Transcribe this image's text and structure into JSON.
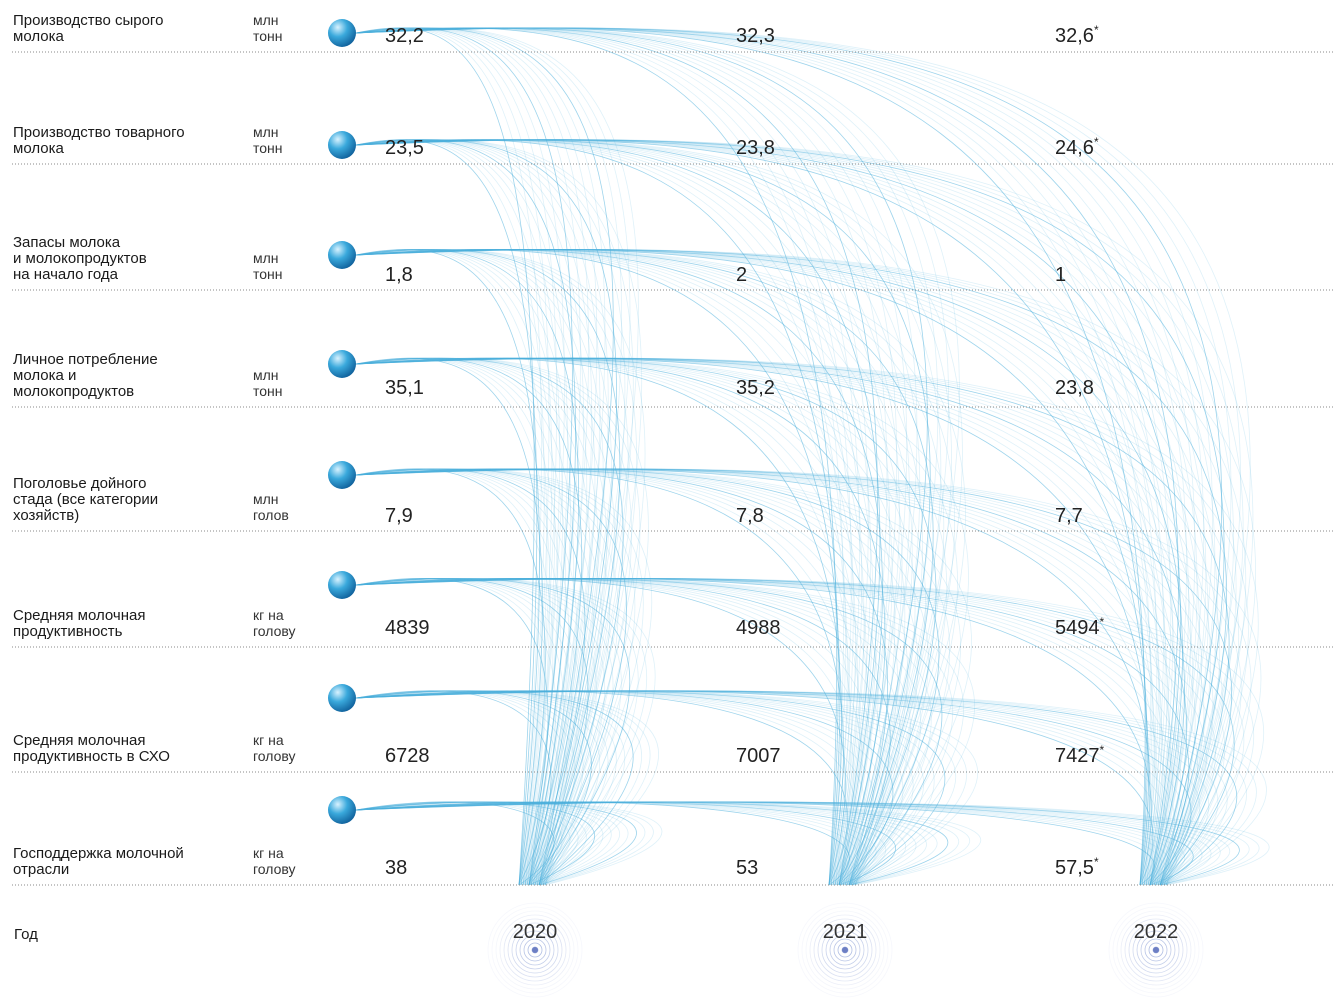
{
  "table": {
    "rows": [
      {
        "label": [
          "Производство сырого",
          "молока"
        ],
        "unit": [
          "млн",
          "тонн"
        ],
        "values": [
          "32,2",
          "32,3",
          "32,6"
        ],
        "notes": [
          null,
          null,
          "*"
        ]
      },
      {
        "label": [
          "Производство товарного",
          "молока"
        ],
        "unit": [
          "млн",
          "тонн"
        ],
        "values": [
          "23,5",
          "23,8",
          "24,6"
        ],
        "notes": [
          null,
          null,
          "*"
        ]
      },
      {
        "label": [
          "Запасы молока",
          "и молокопродуктов",
          "на начало года"
        ],
        "unit": [
          "млн",
          "тонн"
        ],
        "values": [
          "1,8",
          "2",
          "1"
        ],
        "notes": [
          null,
          null,
          null
        ]
      },
      {
        "label": [
          "Личное потребление",
          "молока и",
          "молокопродуктов"
        ],
        "unit": [
          "млн",
          "тонн"
        ],
        "values": [
          "35,1",
          "35,2",
          "23,8"
        ],
        "notes": [
          null,
          null,
          null
        ]
      },
      {
        "label": [
          "Поголовье дойного",
          "стада (все категории",
          "хозяйств)"
        ],
        "unit": [
          "млн",
          "голов"
        ],
        "values": [
          "7,9",
          "7,8",
          "7,7"
        ],
        "notes": [
          null,
          null,
          null
        ]
      },
      {
        "label": [
          "Средняя молочная",
          "продуктивность"
        ],
        "unit": [
          "кг на",
          "голову"
        ],
        "values": [
          "4839",
          "4988",
          "5494"
        ],
        "notes": [
          null,
          null,
          "*"
        ]
      },
      {
        "label": [
          "Средняя молочная",
          "продуктивность в СХО"
        ],
        "unit": [
          "кг на",
          "голову"
        ],
        "values": [
          "6728",
          "7007",
          "7427"
        ],
        "notes": [
          null,
          null,
          "*"
        ]
      },
      {
        "label": [
          "Господдержка молочной",
          "отрасли"
        ],
        "unit": [
          "кг на",
          "голову"
        ],
        "values": [
          "38",
          "53",
          "57,5"
        ],
        "notes": [
          null,
          null,
          "*"
        ]
      }
    ],
    "year_label": "Год",
    "years": [
      "2020",
      "2021",
      "2022"
    ]
  }
}
